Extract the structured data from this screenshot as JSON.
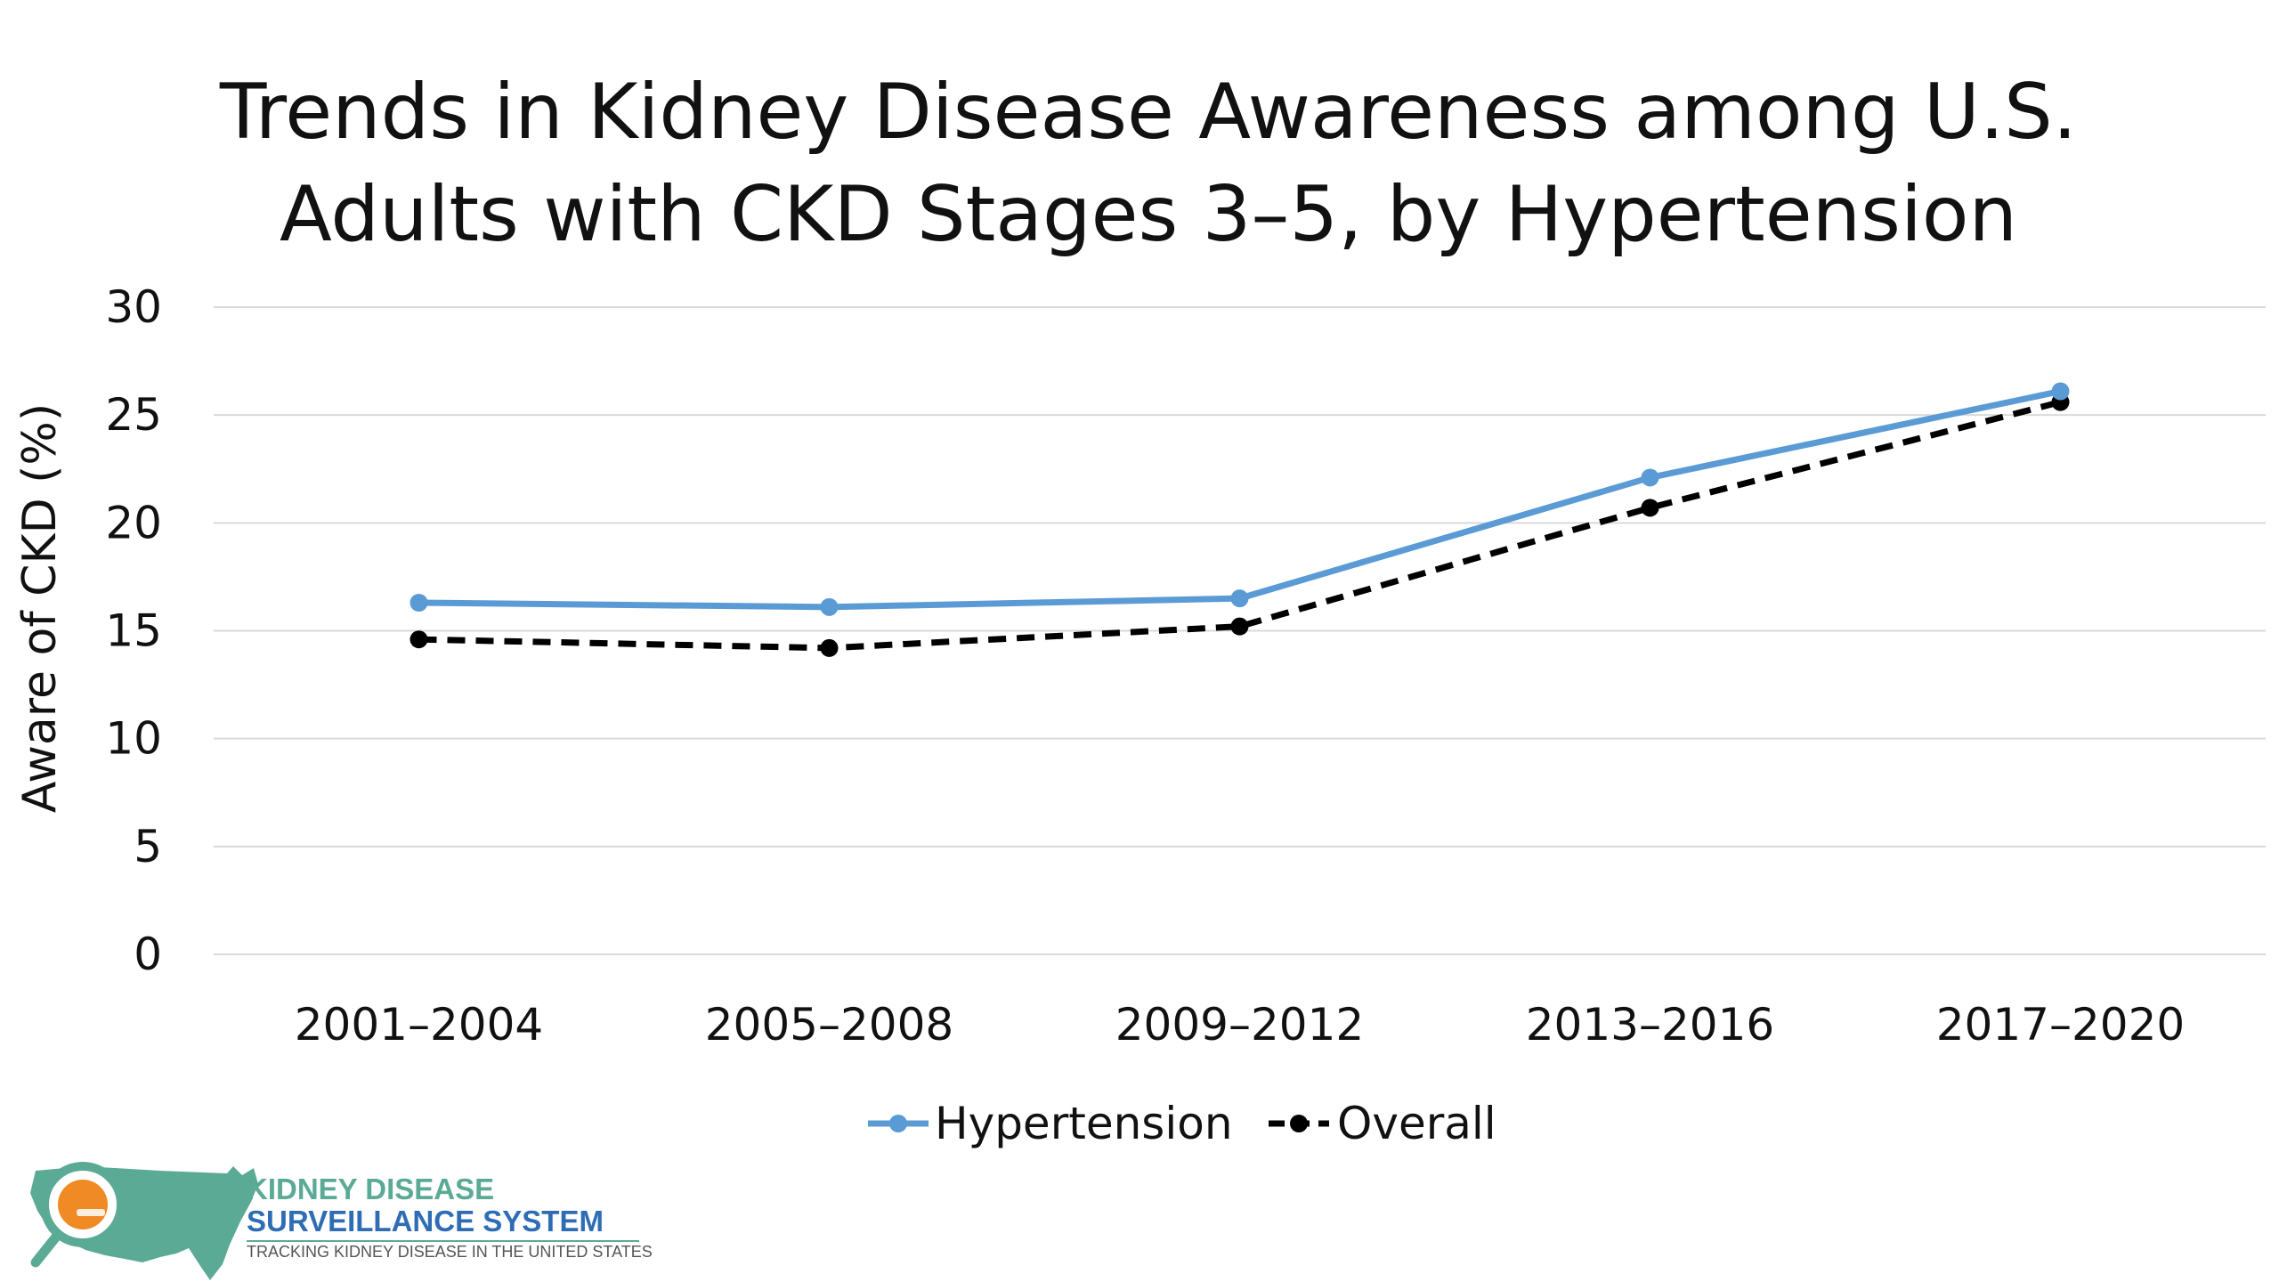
{
  "chart_data": {
    "type": "line",
    "title_lines": [
      "Trends in Kidney Disease Awareness among U.S.",
      "Adults with CKD Stages 3–5, by Hypertension"
    ],
    "xlabel": "",
    "ylabel": "Aware of CKD (%)",
    "categories": [
      "2001–2004",
      "2005–2008",
      "2009–2012",
      "2013–2016",
      "2017–2020"
    ],
    "ylim": [
      0,
      30
    ],
    "yticks": [
      "0",
      "5",
      "10",
      "15",
      "20",
      "25",
      "30"
    ],
    "grid": true,
    "legend_position": "bottom",
    "series": [
      {
        "name": "Hypertension",
        "values": [
          16.3,
          16.1,
          16.5,
          22.1,
          26.1
        ],
        "color": "#5b9bd5",
        "style": "solid"
      },
      {
        "name": "Overall",
        "values": [
          14.6,
          14.2,
          15.2,
          20.7,
          25.6
        ],
        "color": "#000000",
        "style": "dashed"
      }
    ]
  },
  "logo": {
    "line1": "KIDNEY DISEASE",
    "line2": "SURVEILLANCE SYSTEM",
    "tagline": "TRACKING KIDNEY DISEASE IN THE UNITED STATES",
    "color_teal": "#5aaa96",
    "color_blue": "#2e6db5",
    "color_orange": "#f08a24"
  }
}
